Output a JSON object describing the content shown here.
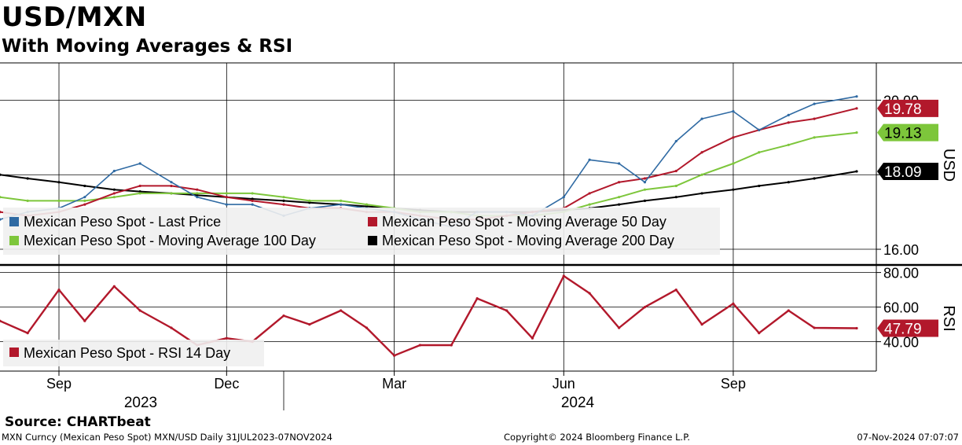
{
  "header": {
    "title": "USD/MXN",
    "subtitle": "With Moving Averages & RSI"
  },
  "footer": {
    "source": "Source: CHARTbeat",
    "description": "MXN Curncy (Mexican Peso Spot) MXN/USD  Daily 31JUL2023-07NOV2024",
    "copyright": "Copyright© 2024 Bloomberg Finance L.P.",
    "timestamp": "07-Nov-2024 07:07:07"
  },
  "colors": {
    "price": "#2f6aa3",
    "ma50": "#b2182b",
    "ma100": "#7dc63b",
    "ma200": "#000000",
    "rsi": "#b2182b",
    "legend_bg": "#f0f0f0"
  },
  "chart_data": [
    {
      "type": "line",
      "panel": "price",
      "ylabel": "USD",
      "yticks": [
        16.0,
        18.0,
        20.0
      ],
      "ylim": [
        15.6,
        21.0
      ],
      "xlim": [
        "2023-07-31",
        "2024-11-07"
      ],
      "x_tick_labels": [
        "Sep",
        "Dec",
        "Mar",
        "Jun",
        "Sep"
      ],
      "x_tick_dates": [
        "2023-09-01",
        "2023-12-01",
        "2024-03-01",
        "2024-06-01",
        "2024-09-01"
      ],
      "year_labels": [
        "2023",
        "2024"
      ],
      "grid": true,
      "legend": "bottom-left",
      "x": [
        "2023-07-31",
        "2023-08-15",
        "2023-09-01",
        "2023-09-15",
        "2023-10-01",
        "2023-10-15",
        "2023-11-01",
        "2023-11-15",
        "2023-12-01",
        "2023-12-15",
        "2024-01-01",
        "2024-01-15",
        "2024-02-01",
        "2024-02-15",
        "2024-03-01",
        "2024-03-15",
        "2024-04-01",
        "2024-04-15",
        "2024-05-01",
        "2024-05-15",
        "2024-06-01",
        "2024-06-15",
        "2024-07-01",
        "2024-07-15",
        "2024-08-01",
        "2024-08-15",
        "2024-09-01",
        "2024-09-15",
        "2024-10-01",
        "2024-10-15",
        "2024-11-07"
      ],
      "series": [
        {
          "name": "Mexican Peso Spot - Last Price",
          "color_key": "price",
          "values": [
            16.8,
            17.0,
            17.1,
            17.4,
            18.1,
            18.3,
            17.8,
            17.4,
            17.2,
            17.2,
            16.9,
            17.1,
            17.2,
            17.1,
            17.0,
            16.8,
            16.6,
            17.0,
            17.0,
            16.9,
            17.4,
            18.4,
            18.3,
            17.8,
            18.9,
            19.5,
            19.7,
            19.2,
            19.6,
            19.9,
            20.1
          ]
        },
        {
          "name": "Mexican Peso Spot - Moving Average 50 Day",
          "color_key": "ma50",
          "values": [
            17.0,
            16.9,
            17.0,
            17.2,
            17.5,
            17.7,
            17.7,
            17.6,
            17.4,
            17.3,
            17.2,
            17.1,
            17.1,
            17.0,
            17.0,
            16.9,
            16.8,
            16.8,
            16.9,
            17.0,
            17.1,
            17.5,
            17.8,
            17.9,
            18.1,
            18.6,
            19.0,
            19.2,
            19.4,
            19.5,
            19.78
          ]
        },
        {
          "name": "Mexican Peso Spot - Moving Average 100 Day",
          "color_key": "ma100",
          "values": [
            17.4,
            17.3,
            17.3,
            17.3,
            17.4,
            17.5,
            17.5,
            17.5,
            17.5,
            17.5,
            17.4,
            17.3,
            17.3,
            17.2,
            17.1,
            17.0,
            17.0,
            16.9,
            16.9,
            16.9,
            17.0,
            17.2,
            17.4,
            17.6,
            17.7,
            18.0,
            18.3,
            18.6,
            18.8,
            19.0,
            19.13
          ]
        },
        {
          "name": "Mexican Peso Spot - Moving Average 200 Day",
          "color_key": "ma200",
          "values": [
            18.0,
            17.9,
            17.8,
            17.7,
            17.6,
            17.55,
            17.5,
            17.45,
            17.4,
            17.35,
            17.3,
            17.25,
            17.2,
            17.15,
            17.1,
            17.05,
            17.0,
            17.0,
            17.0,
            17.0,
            17.05,
            17.1,
            17.2,
            17.3,
            17.4,
            17.5,
            17.6,
            17.7,
            17.8,
            17.9,
            18.09
          ]
        }
      ],
      "last_values": [
        {
          "label": "19.78",
          "color_key": "ma50",
          "value": 19.78
        },
        {
          "label": "19.13",
          "color_key": "ma100",
          "value": 19.13
        },
        {
          "label": "18.09",
          "color_key": "ma200",
          "value": 18.09
        }
      ]
    },
    {
      "type": "line",
      "panel": "rsi",
      "ylabel": "RSI",
      "yticks": [
        40.0,
        60.0,
        80.0
      ],
      "ylim": [
        23,
        83
      ],
      "legend": "bottom-left",
      "x": [
        "2023-07-31",
        "2023-08-15",
        "2023-09-01",
        "2023-09-15",
        "2023-10-01",
        "2023-10-15",
        "2023-11-01",
        "2023-11-15",
        "2023-12-01",
        "2023-12-15",
        "2024-01-01",
        "2024-01-15",
        "2024-02-01",
        "2024-02-15",
        "2024-03-01",
        "2024-03-15",
        "2024-04-01",
        "2024-04-15",
        "2024-05-01",
        "2024-05-15",
        "2024-06-01",
        "2024-06-15",
        "2024-07-01",
        "2024-07-15",
        "2024-08-01",
        "2024-08-15",
        "2024-09-01",
        "2024-09-15",
        "2024-10-01",
        "2024-10-15",
        "2024-11-07"
      ],
      "series": [
        {
          "name": "Mexican Peso Spot - RSI 14 Day",
          "color_key": "rsi",
          "values": [
            52,
            45,
            70,
            52,
            72,
            58,
            48,
            38,
            42,
            40,
            55,
            50,
            58,
            48,
            32,
            38,
            38,
            65,
            58,
            42,
            78,
            68,
            48,
            60,
            70,
            50,
            62,
            45,
            58,
            48,
            47.79
          ]
        }
      ],
      "last_values": [
        {
          "label": "47.79",
          "color_key": "rsi",
          "value": 47.79
        }
      ]
    }
  ]
}
